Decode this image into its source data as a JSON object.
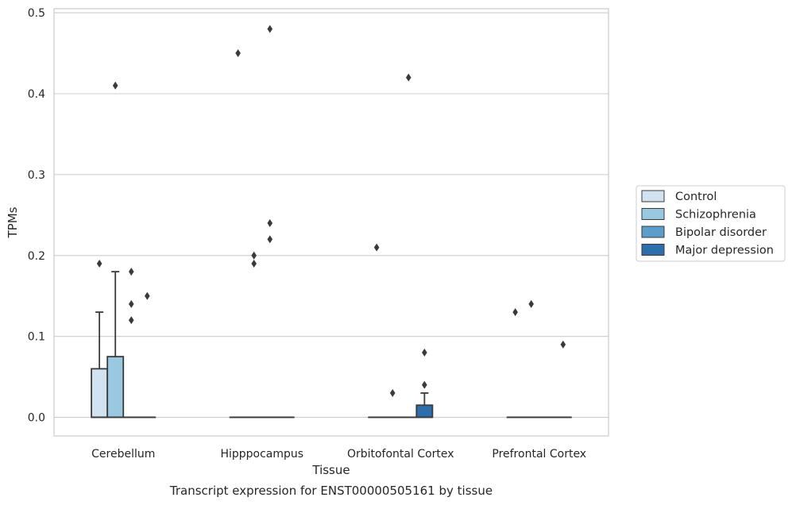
{
  "chart_data": {
    "type": "box",
    "xlabel": "Tissue",
    "ylabel": "TPMs",
    "caption": "Transcript expression for ENST00000505161 by tissue",
    "ylim": [
      -0.023,
      0.505
    ],
    "yticks": [
      0.0,
      0.1,
      0.2,
      0.3,
      0.4,
      0.5
    ],
    "ytick_labels": [
      "0.0",
      "0.1",
      "0.2",
      "0.3",
      "0.4",
      "0.5"
    ],
    "grid": "horizontal",
    "legend_position": "right",
    "categories": [
      "Cerebellum",
      "Hipppocampus",
      "Orbitofontal Cortex",
      "Prefrontal Cortex"
    ],
    "series": [
      {
        "name": "Control",
        "color": "#d1e2f1",
        "boxes": [
          {
            "q1": 0.0,
            "median": 0.0,
            "q3": 0.06,
            "whisker_low": 0.0,
            "whisker_high": 0.13,
            "outliers": [
              0.19
            ]
          },
          {
            "q1": 0.0,
            "median": 0.0,
            "q3": 0.0,
            "whisker_low": 0.0,
            "whisker_high": 0.0,
            "outliers": [
              0.45
            ]
          },
          {
            "q1": 0.0,
            "median": 0.0,
            "q3": 0.0,
            "whisker_low": 0.0,
            "whisker_high": 0.0,
            "outliers": [
              0.21
            ]
          },
          {
            "q1": 0.0,
            "median": 0.0,
            "q3": 0.0,
            "whisker_low": 0.0,
            "whisker_high": 0.0,
            "outliers": [
              0.13
            ]
          }
        ]
      },
      {
        "name": "Schizophrenia",
        "color": "#9ac8e0",
        "boxes": [
          {
            "q1": 0.0,
            "median": 0.0,
            "q3": 0.075,
            "whisker_low": 0.0,
            "whisker_high": 0.18,
            "outliers": [
              0.41
            ]
          },
          {
            "q1": 0.0,
            "median": 0.0,
            "q3": 0.0,
            "whisker_low": 0.0,
            "whisker_high": 0.0,
            "outliers": [
              0.19,
              0.2
            ]
          },
          {
            "q1": 0.0,
            "median": 0.0,
            "q3": 0.0,
            "whisker_low": 0.0,
            "whisker_high": 0.0,
            "outliers": [
              0.03
            ]
          },
          {
            "q1": 0.0,
            "median": 0.0,
            "q3": 0.0,
            "whisker_low": 0.0,
            "whisker_high": 0.0,
            "outliers": [
              0.14
            ]
          }
        ]
      },
      {
        "name": "Bipolar disorder",
        "color": "#5a9ec9",
        "boxes": [
          {
            "q1": 0.0,
            "median": 0.0,
            "q3": 0.0,
            "whisker_low": 0.0,
            "whisker_high": 0.0,
            "outliers": [
              0.12,
              0.14,
              0.18
            ]
          },
          {
            "q1": 0.0,
            "median": 0.0,
            "q3": 0.0,
            "whisker_low": 0.0,
            "whisker_high": 0.0,
            "outliers": [
              0.22,
              0.24,
              0.48
            ]
          },
          {
            "q1": 0.0,
            "median": 0.0,
            "q3": 0.0,
            "whisker_low": 0.0,
            "whisker_high": 0.0,
            "outliers": [
              0.42
            ]
          },
          {
            "q1": 0.0,
            "median": 0.0,
            "q3": 0.0,
            "whisker_low": 0.0,
            "whisker_high": 0.0,
            "outliers": []
          }
        ]
      },
      {
        "name": "Major depression",
        "color": "#2d6fad",
        "boxes": [
          {
            "q1": 0.0,
            "median": 0.0,
            "q3": 0.0,
            "whisker_low": 0.0,
            "whisker_high": 0.0,
            "outliers": [
              0.15
            ]
          },
          {
            "q1": 0.0,
            "median": 0.0,
            "q3": 0.0,
            "whisker_low": 0.0,
            "whisker_high": 0.0,
            "outliers": []
          },
          {
            "q1": 0.0,
            "median": 0.0,
            "q3": 0.015,
            "whisker_low": 0.0,
            "whisker_high": 0.03,
            "outliers": [
              0.04,
              0.08
            ]
          },
          {
            "q1": 0.0,
            "median": 0.0,
            "q3": 0.0,
            "whisker_low": 0.0,
            "whisker_high": 0.0,
            "outliers": [
              0.09
            ]
          }
        ]
      }
    ]
  }
}
